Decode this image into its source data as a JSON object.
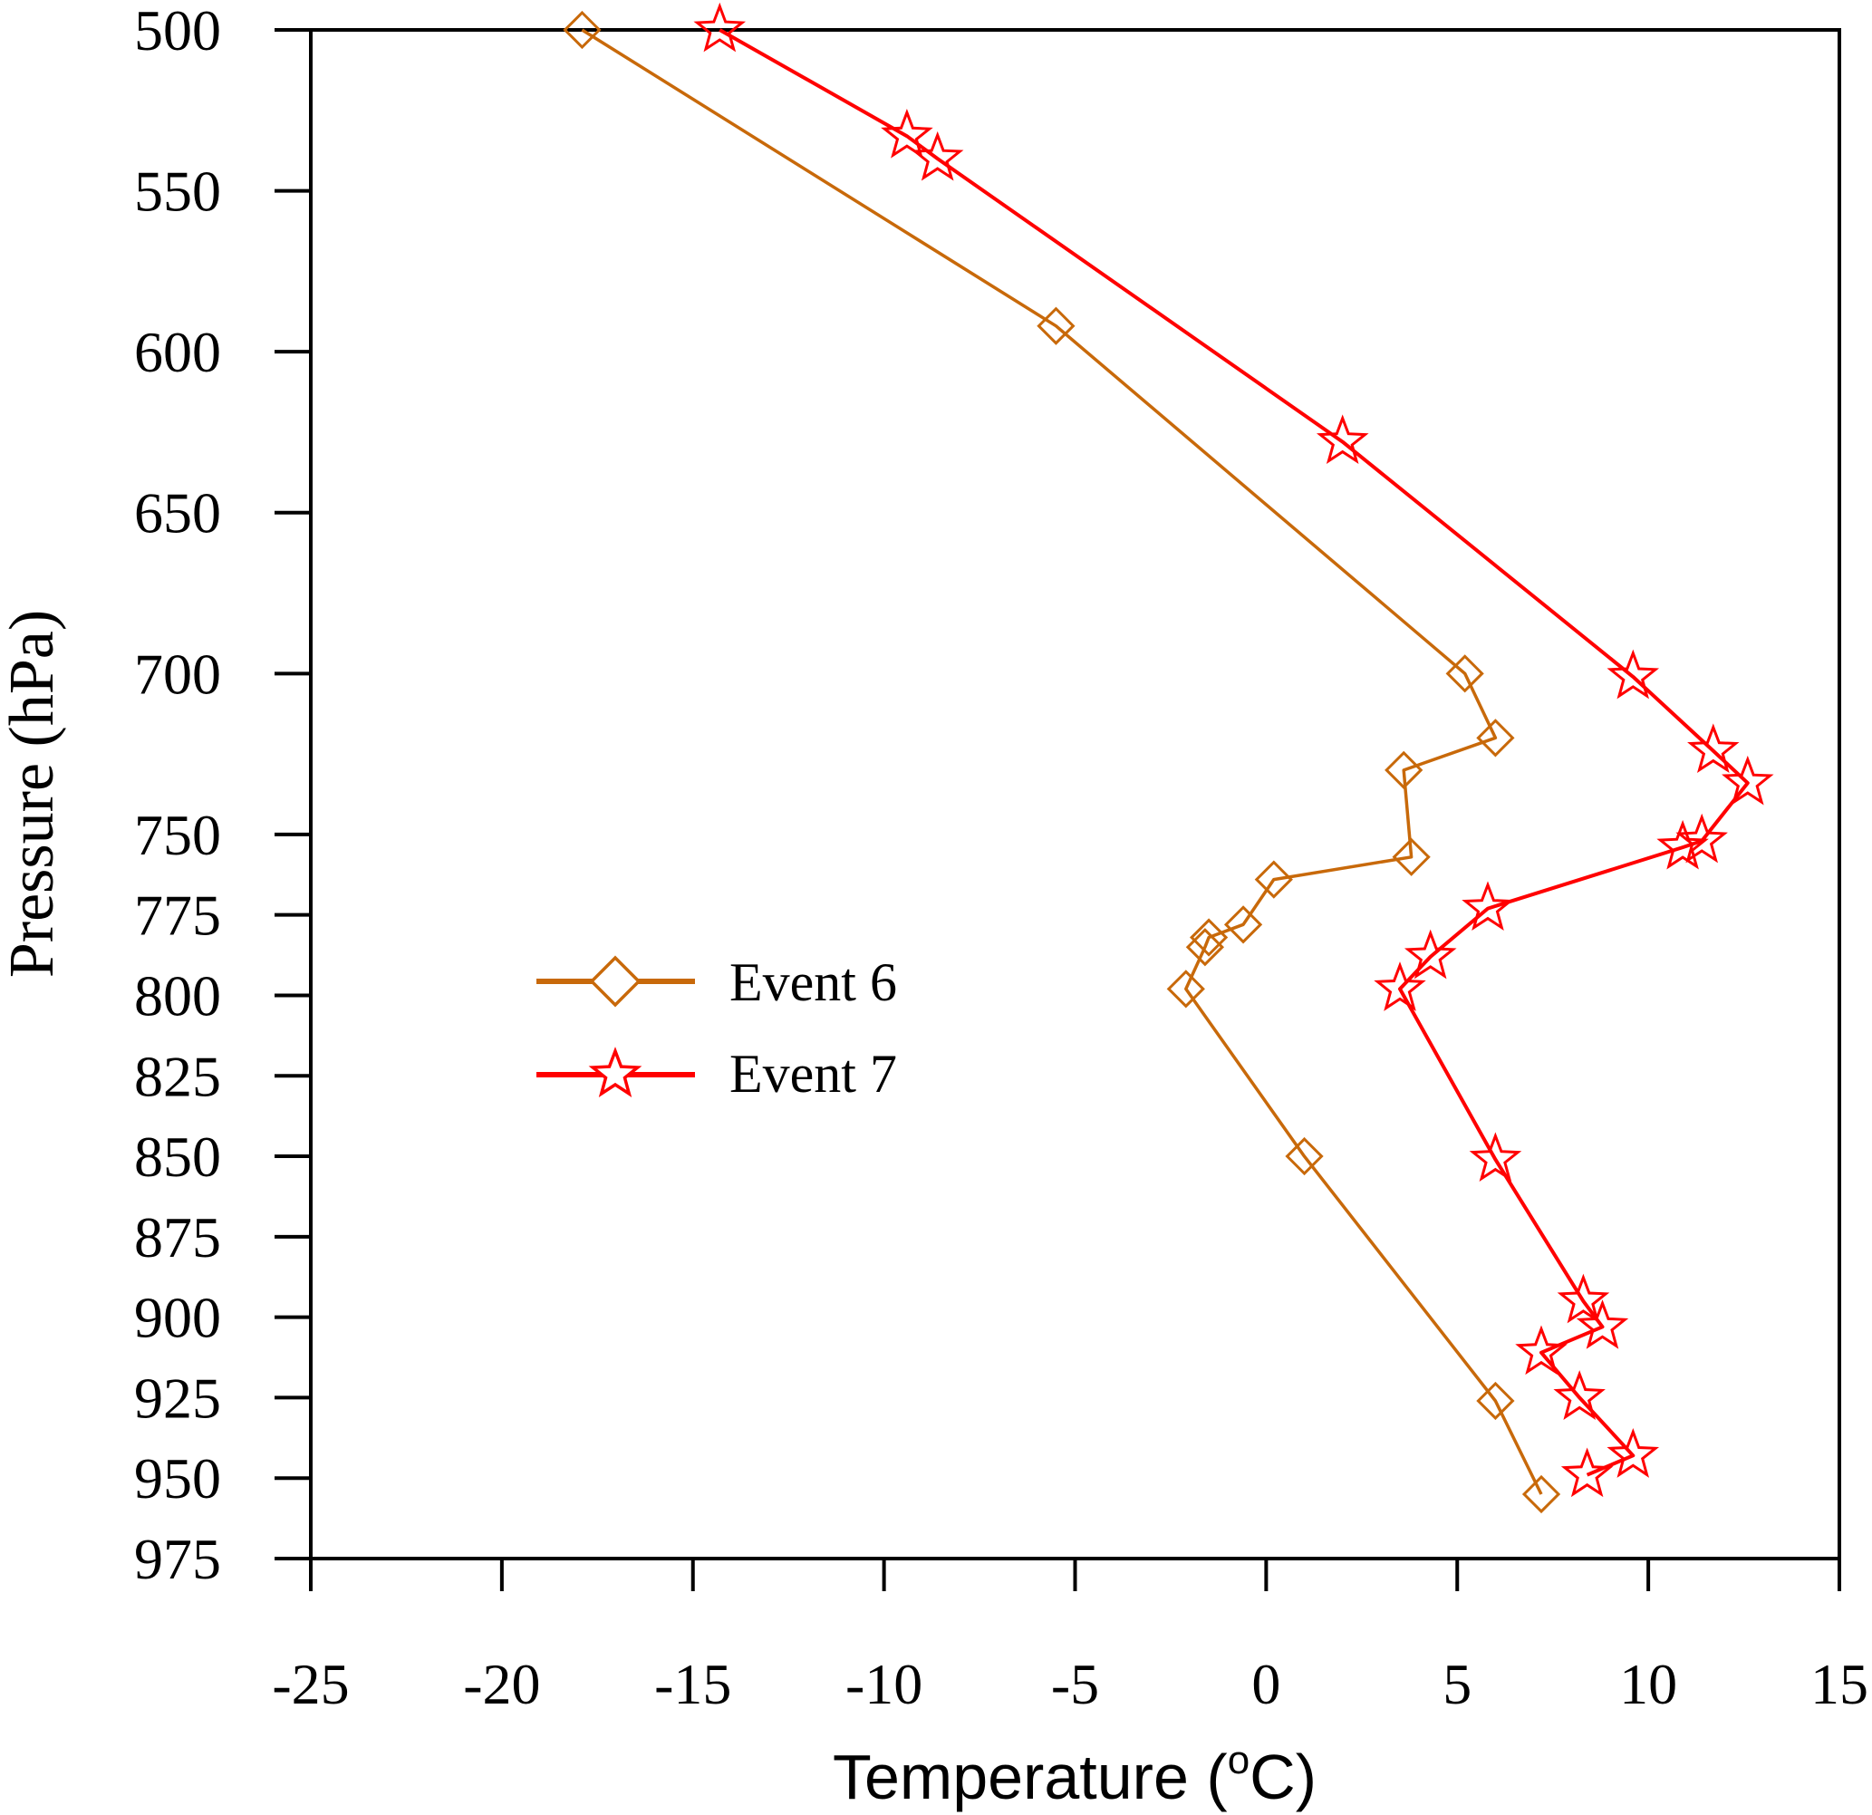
{
  "chart_data": {
    "type": "line",
    "xlabel": "Temperature (",
    "xlabel_sup": "o",
    "xlabel_end": "C)",
    "ylabel": "Pressure (hPa)",
    "xlim": [
      -25,
      15
    ],
    "ylim": [
      500,
      975
    ],
    "y_inverted": true,
    "x_ticks": [
      "-25",
      "-20",
      "-15",
      "-10",
      "-5",
      "0",
      "5",
      "10",
      "15"
    ],
    "y_ticks": [
      "500",
      "550",
      "600",
      "650",
      "700",
      "750",
      "775",
      "800",
      "825",
      "850",
      "875",
      "900",
      "925",
      "950",
      "975"
    ],
    "grid": false,
    "legend_position": "center-left",
    "series": [
      {
        "name": "Event 6",
        "color": "#c8690a",
        "marker": "diamond",
        "points": [
          [
            -17.9,
            500
          ],
          [
            -5.5,
            592
          ],
          [
            5.2,
            700
          ],
          [
            6.0,
            720
          ],
          [
            3.6,
            730
          ],
          [
            3.8,
            757
          ],
          [
            0.2,
            764
          ],
          [
            -0.6,
            778
          ],
          [
            -1.5,
            782
          ],
          [
            -1.6,
            785
          ],
          [
            -2.1,
            798
          ],
          [
            1.0,
            850
          ],
          [
            6.0,
            926
          ],
          [
            7.2,
            955
          ]
        ]
      },
      {
        "name": "Event 7",
        "color": "#ff0000",
        "marker": "star",
        "points": [
          [
            -14.3,
            500
          ],
          [
            -9.4,
            533
          ],
          [
            -8.6,
            540
          ],
          [
            2.0,
            628
          ],
          [
            9.6,
            701
          ],
          [
            11.7,
            724
          ],
          [
            12.6,
            734
          ],
          [
            11.4,
            752
          ],
          [
            10.9,
            754
          ],
          [
            5.8,
            773
          ],
          [
            4.3,
            788
          ],
          [
            3.5,
            798
          ],
          [
            6.0,
            851
          ],
          [
            8.3,
            895
          ],
          [
            8.8,
            903
          ],
          [
            7.2,
            911
          ],
          [
            8.2,
            925
          ],
          [
            9.6,
            943
          ],
          [
            8.4,
            949
          ]
        ]
      }
    ]
  }
}
